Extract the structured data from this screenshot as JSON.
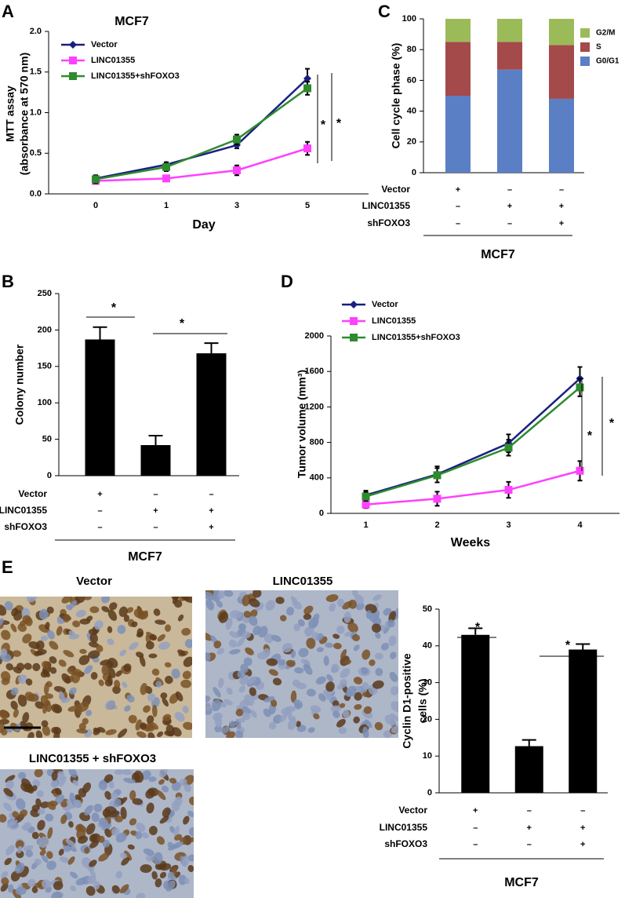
{
  "chart_data": [
    {
      "panel": "A",
      "type": "line",
      "title": "MCF7",
      "y_label": [
        "MTT assay",
        "(absorbance at 570 nm)"
      ],
      "x_label": "Day",
      "categories": [
        "0",
        "1",
        "3",
        "5"
      ],
      "ylim": [
        0,
        2
      ],
      "yticks": [
        {
          "value": 0,
          "label": "0.0"
        },
        0.5,
        {
          "value": 1,
          "label": "1.0"
        },
        1.5,
        {
          "value": 2,
          "label": "2.0"
        }
      ],
      "series": [
        {
          "name": "Vector",
          "color": "#1a1f80",
          "marker": "diamond",
          "values": [
            0.19,
            0.36,
            0.6,
            1.42
          ],
          "errors": [
            0.03,
            0.03,
            0.04,
            0.12
          ]
        },
        {
          "name": "LINC01355",
          "color": "#ff40ff",
          "marker": "square",
          "values": [
            0.16,
            0.19,
            0.29,
            0.56
          ],
          "errors": [
            0.02,
            0.03,
            0.06,
            0.08
          ]
        },
        {
          "name": "LINC01355+shFOXO3",
          "color": "#2e8b2e",
          "marker": "square",
          "values": [
            0.18,
            0.33,
            0.67,
            1.3
          ],
          "errors": [
            0.05,
            0.05,
            0.06,
            0.08
          ]
        }
      ],
      "annotations": [
        "*",
        "*"
      ]
    },
    {
      "panel": "C",
      "type": "stacked_bar",
      "y_label": "Cell cycle phase (%)",
      "categories": [
        null,
        null,
        null
      ],
      "ylim": [
        0,
        100
      ],
      "yticks": [
        0,
        20,
        40,
        60,
        80,
        100
      ],
      "series": [
        {
          "name": "G0/G1",
          "color": "#5b7fc4",
          "values": [
            50,
            67,
            48
          ]
        },
        {
          "name": "S",
          "color": "#a54a4a",
          "values": [
            35,
            18,
            35
          ]
        },
        {
          "name": "G2/M",
          "color": "#9bbb59",
          "values": [
            15,
            15,
            17
          ]
        }
      ],
      "conditions": [
        {
          "label": "Vector",
          "marks": [
            "+",
            "–",
            "–"
          ]
        },
        {
          "label": "LINC01355",
          "marks": [
            "–",
            "+",
            "+"
          ]
        },
        {
          "label": "shFOXO3",
          "marks": [
            "–",
            "–",
            "+"
          ]
        }
      ],
      "group_label": "MCF7"
    },
    {
      "panel": "B",
      "type": "bar",
      "y_label": "Colony number",
      "categories": [
        null,
        null,
        null
      ],
      "ylim": [
        0,
        250
      ],
      "yticks": [
        0,
        50,
        100,
        150,
        200,
        250
      ],
      "color": "#000000",
      "values": [
        187,
        42,
        168
      ],
      "errors": [
        17,
        13,
        14
      ],
      "annotations": [
        "*",
        "*"
      ],
      "conditions": [
        {
          "label": "Vector",
          "marks": [
            "+",
            "–",
            "–"
          ]
        },
        {
          "label": "LINC01355",
          "marks": [
            "–",
            "+",
            "+"
          ]
        },
        {
          "label": "shFOXO3",
          "marks": [
            "–",
            "–",
            "+"
          ]
        }
      ],
      "group_label": "MCF7"
    },
    {
      "panel": "D",
      "type": "line",
      "y_label": "Tumor volume (mm³)",
      "x_label": "Weeks",
      "categories": [
        "1",
        "2",
        "3",
        "4"
      ],
      "ylim": [
        0,
        2000
      ],
      "yticks": [
        0,
        400,
        800,
        1200,
        1600,
        2000
      ],
      "series": [
        {
          "name": "Vector",
          "color": "#1a1f80",
          "marker": "diamond",
          "values": [
            205,
            440,
            790,
            1520
          ],
          "errors": [
            50,
            90,
            100,
            130
          ]
        },
        {
          "name": "LINC01355",
          "color": "#ff40ff",
          "marker": "square",
          "values": [
            100,
            165,
            265,
            480
          ],
          "errors": [
            40,
            80,
            90,
            110
          ]
        },
        {
          "name": "LINC01355+shFOXO3",
          "color": "#2e8b2e",
          "marker": "square",
          "values": [
            190,
            430,
            740,
            1420
          ],
          "errors": [
            50,
            80,
            90,
            100
          ]
        }
      ],
      "annotations": [
        "*",
        "*"
      ]
    },
    {
      "panel": "E",
      "type": "bar",
      "y_label": [
        "Cyclin D1-positive",
        "cells (%)"
      ],
      "categories": [
        null,
        null,
        null
      ],
      "ylim": [
        0,
        50
      ],
      "yticks": [
        0,
        10,
        20,
        30,
        40,
        50
      ],
      "color": "#000000",
      "values": [
        43,
        12.7,
        39
      ],
      "errors": [
        1.8,
        1.7,
        1.5
      ],
      "annotations": [
        "*",
        "*"
      ],
      "conditions": [
        {
          "label": "Vector",
          "marks": [
            "+",
            "–",
            "–"
          ]
        },
        {
          "label": "LINC01355",
          "marks": [
            "–",
            "+",
            "+"
          ]
        },
        {
          "label": "shFOXO3",
          "marks": [
            "–",
            "–",
            "+"
          ]
        }
      ],
      "group_label": "MCF7",
      "images": [
        "Vector",
        "LINC01355",
        "LINC01355 + shFOXO3"
      ]
    }
  ]
}
